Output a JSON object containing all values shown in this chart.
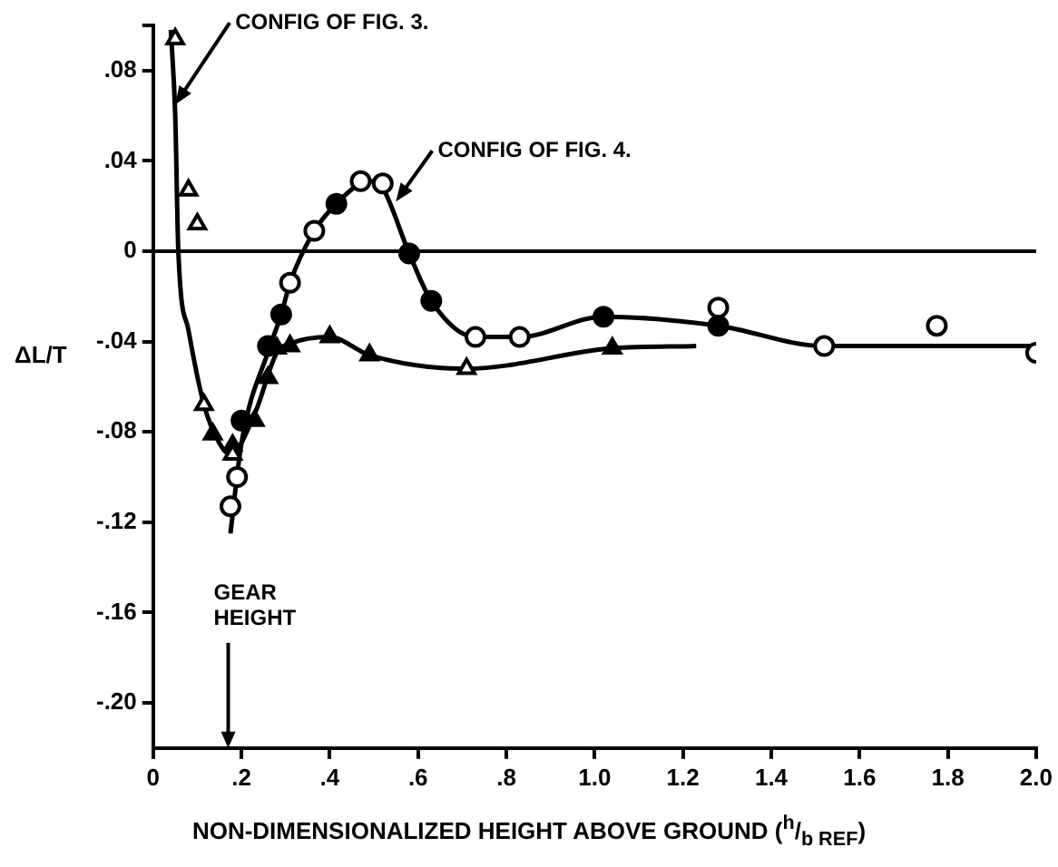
{
  "chart_data": {
    "type": "scatter",
    "ylabel": "ΔL/T",
    "xlabel": "NON-DIMENSIONALIZED HEIGHT ABOVE GROUND ($^{h}$/$_{b REF}$)",
    "xlim": [
      0,
      2.0
    ],
    "xticks": [
      0,
      {
        "value": 0.2,
        "label": ".2"
      },
      {
        "value": 0.4,
        "label": ".4"
      },
      {
        "value": 0.6,
        "label": ".6"
      },
      {
        "value": 0.8,
        "label": ".8"
      },
      {
        "value": 1.0,
        "label": "1.0"
      },
      {
        "value": 1.2,
        "label": "1.2"
      },
      {
        "value": 1.4,
        "label": "1.4"
      },
      {
        "value": 1.6,
        "label": "1.6"
      },
      {
        "value": 1.8,
        "label": "1.8"
      },
      {
        "value": 2.0,
        "label": "2.0"
      }
    ],
    "ylim": [
      -0.22,
      0.1
    ],
    "yticks": [
      {
        "value": -0.2,
        "label": "-.20"
      },
      {
        "value": -0.16,
        "label": "-.16"
      },
      {
        "value": -0.12,
        "label": "-.12"
      },
      {
        "value": -0.08,
        "label": "-.08"
      },
      {
        "value": -0.04,
        "label": "-.04"
      },
      0,
      {
        "value": 0.04,
        "label": ".04"
      },
      {
        "value": 0.08,
        "label": ".08"
      },
      {
        "value": 0.1,
        "label": null
      }
    ],
    "grid": false,
    "legend": false,
    "ref_lines": [
      {
        "axis": "y",
        "value": 0,
        "label": null,
        "color": "#000000"
      }
    ],
    "annotations": [
      {
        "text": "CONFIG OF FIG. 3.",
        "x": 0.05,
        "y": 0.065
      },
      {
        "text": "CONFIG OF FIG. 4.",
        "x": 0.55,
        "y": 0.022
      },
      "GEAR HEIGHT"
    ],
    "series": [
      {
        "type": "line",
        "marker": "none",
        "color": "#000000",
        "x": [
          0.04,
          0.05,
          0.057,
          0.08,
          0.115,
          0.15,
          0.175,
          0.23,
          0.28,
          0.31,
          0.4,
          0.49,
          0.71,
          1.04,
          1.23
        ],
        "values": [
          0.098,
          0.06,
          0,
          -0.035,
          -0.068,
          -0.085,
          -0.09,
          -0.072,
          -0.045,
          -0.041,
          -0.038,
          -0.046,
          -0.052,
          -0.043,
          -0.042
        ]
      },
      {
        "type": "line",
        "marker": "none",
        "color": "#000000",
        "x": [
          0.175,
          0.2,
          0.265,
          0.29,
          0.31,
          0.365,
          0.415,
          0.47,
          0.5,
          0.52,
          0.58,
          0.63,
          0.73,
          0.83,
          1.02,
          1.28,
          1.52,
          1.775,
          2.0
        ],
        "values": [
          -0.125,
          -0.085,
          -0.042,
          -0.028,
          -0.014,
          0.009,
          0.021,
          0.03,
          0.031,
          0.028,
          -0.001,
          -0.022,
          -0.038,
          -0.038,
          -0.029,
          -0.033,
          -0.042,
          -0.042,
          -0.042
        ]
      },
      {
        "marker": "triangle",
        "color": "#ffffff",
        "x": [
          0.05,
          0.08,
          0.1,
          0.115,
          0.18,
          0.71
        ],
        "values": [
          0.094,
          0.027,
          0.012,
          -0.068,
          -0.09,
          -0.052
        ]
      },
      {
        "marker": "triangle",
        "color": "#000000",
        "x": [
          0.135,
          0.18,
          0.23,
          0.26,
          0.28,
          0.31,
          0.4,
          0.49,
          1.04
        ],
        "values": [
          -0.081,
          -0.086,
          -0.075,
          -0.056,
          -0.043,
          -0.042,
          -0.038,
          -0.046,
          -0.043
        ]
      },
      {
        "marker": "circle",
        "color": "#ffffff",
        "x": [
          0.175,
          0.19,
          0.31,
          0.365,
          0.47,
          0.52,
          0.73,
          0.83,
          1.28,
          1.52,
          1.775,
          2.0
        ],
        "values": [
          -0.113,
          -0.1,
          -0.014,
          0.009,
          0.031,
          0.03,
          -0.038,
          -0.038,
          -0.025,
          -0.042,
          -0.033,
          -0.045
        ]
      },
      {
        "marker": "circle",
        "color": "#000000",
        "x": [
          0.2,
          0.26,
          0.29,
          0.415,
          0.58,
          0.63,
          1.02,
          1.28
        ],
        "values": [
          -0.075,
          -0.042,
          -0.028,
          0.021,
          -0.001,
          -0.022,
          -0.029,
          -0.033
        ]
      }
    ]
  }
}
